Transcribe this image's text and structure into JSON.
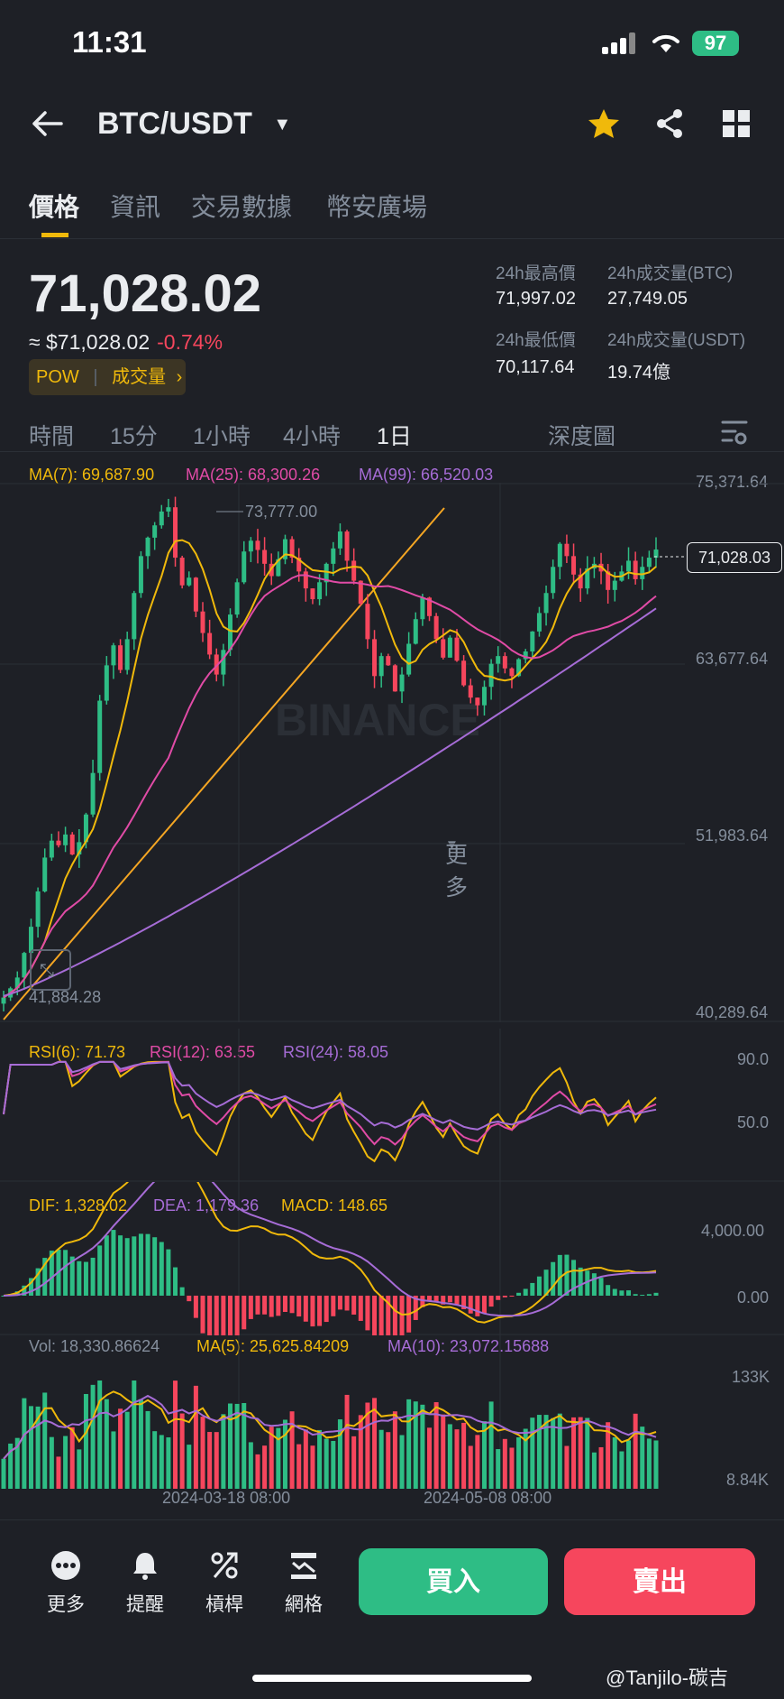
{
  "status": {
    "time": "11:31",
    "battery": "97"
  },
  "header": {
    "pair": "BTC/USDT"
  },
  "tabs": [
    "價格",
    "資訊",
    "交易數據",
    "幣安廣場"
  ],
  "price": {
    "last": "71,028.02",
    "usd": "≈ $71,028.02",
    "change": "-0.74%",
    "tag1": "POW",
    "tag2": "成交量"
  },
  "stats": {
    "high_label": "24h最高價",
    "high": "71,997.02",
    "vol_btc_label": "24h成交量(BTC)",
    "vol_btc": "27,749.05",
    "low_label": "24h最低價",
    "low": "70,117.64",
    "vol_usdt_label": "24h成交量(USDT)",
    "vol_usdt": "19.74億"
  },
  "timeframes": [
    "時間",
    "15分",
    "1小時",
    "4小時",
    "1日",
    "更多",
    "深度圖"
  ],
  "active_timeframe": "1日",
  "ma_legend": {
    "ma7": "MA(7): 69,687.90",
    "ma25": "MA(25): 68,300.26",
    "ma99": "MA(99): 66,520.03"
  },
  "price_axis": [
    "75,371.64",
    "63,677.64",
    "51,983.64",
    "40,289.64"
  ],
  "current_price_tag": "71,028.03",
  "high_marker": "73,777.00",
  "low_marker": "41,884.28",
  "watermark": "BINANCE",
  "rsi_legend": {
    "rsi6": "RSI(6): 71.73",
    "rsi12": "RSI(12): 63.55",
    "rsi24": "RSI(24): 58.05"
  },
  "rsi_axis": [
    "90.0",
    "50.0"
  ],
  "macd_legend": {
    "dif": "DIF: 1,328.02",
    "dea": "DEA: 1,179.36",
    "macd": "MACD: 148.65"
  },
  "macd_axis": [
    "4,000.00",
    "0.00"
  ],
  "vol_legend": {
    "vol": "Vol: 18,330.86624",
    "ma5": "MA(5): 25,625.84209",
    "ma10": "MA(10): 23,072.15688"
  },
  "vol_axis": [
    "133K",
    "8.84K"
  ],
  "date_axis": [
    "2024-03-18 08:00",
    "2024-05-08 08:00"
  ],
  "bottom_nav": [
    "更多",
    "提醒",
    "槓桿",
    "網格"
  ],
  "buy_label": "買入",
  "sell_label": "賣出",
  "credit": "@Tanjilo-碳吉",
  "colors": {
    "up": "#2ebd85",
    "down": "#f6465d",
    "ma7": "#f0b90b",
    "ma25": "#e04ba6",
    "ma99": "#a66cd6",
    "accent": "#f0b90b"
  },
  "chart_data": {
    "type": "candlestick",
    "ylim": [
      40289.64,
      75371.64
    ],
    "closes": [
      41900,
      42500,
      43200,
      44800,
      46500,
      48800,
      51000,
      52100,
      51800,
      52500,
      51200,
      52000,
      53800,
      56500,
      61200,
      63500,
      64800,
      63200,
      65200,
      68200,
      70600,
      71800,
      72600,
      73500,
      73777,
      70500,
      68700,
      69200,
      67000,
      65600,
      64200,
      62900,
      64500,
      66800,
      68900,
      70900,
      71600,
      71000,
      70100,
      69300,
      70400,
      71700,
      70500,
      69600,
      68500,
      67800,
      68900,
      70100,
      71100,
      72200,
      70300,
      69000,
      67500,
      65200,
      62800,
      64100,
      63500,
      61800,
      62900,
      64900,
      66500,
      67900,
      66700,
      65200,
      64000,
      65300,
      63800,
      62200,
      61400,
      60900,
      62100,
      63600,
      64100,
      63300,
      62800,
      63900,
      64400,
      65700,
      66900,
      68200,
      69900,
      71400,
      70600,
      69400,
      68500,
      69800,
      70100,
      69600,
      68400,
      69000,
      69600,
      70300,
      69100,
      69900,
      70500,
      71028
    ]
  }
}
